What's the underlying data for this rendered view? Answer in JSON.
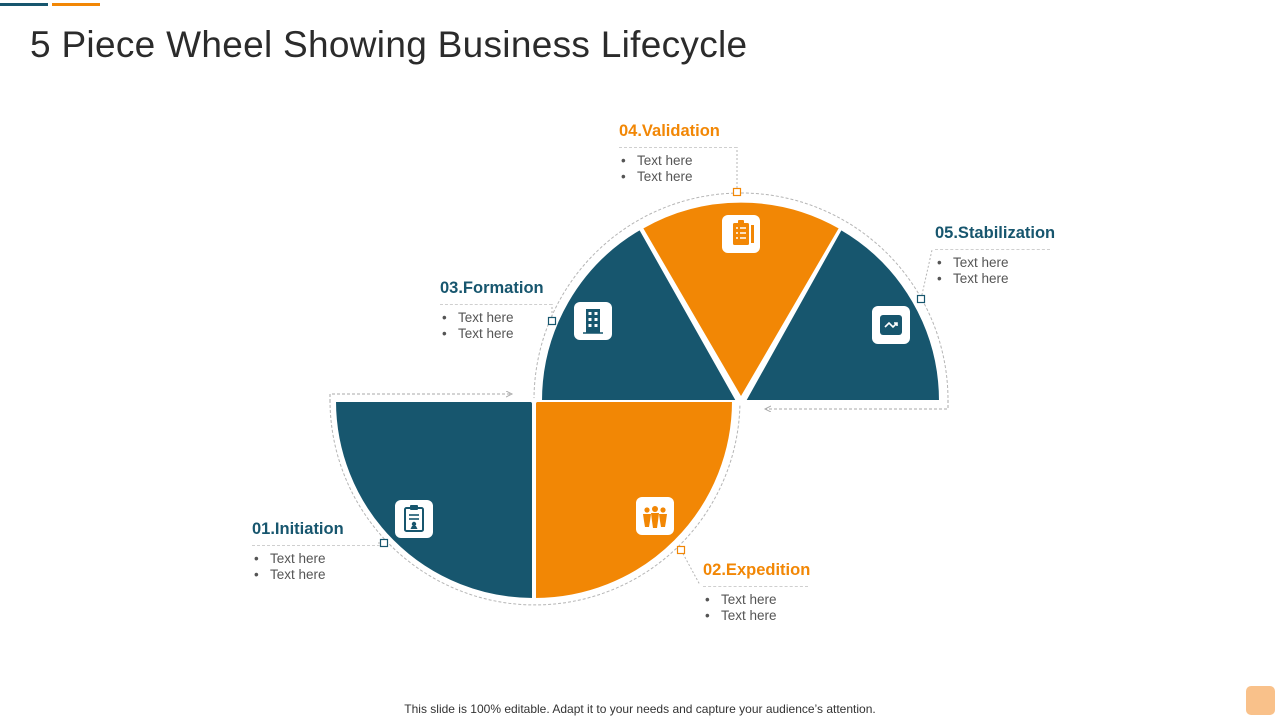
{
  "title": "5 Piece Wheel Showing Business Lifecycle",
  "colors": {
    "teal": "#17566e",
    "orange": "#f28705",
    "title_text": "#2b2b2b",
    "connector": "#aaaaaa"
  },
  "stages": [
    {
      "id": "initiation",
      "heading": "01.Initiation",
      "bullets": [
        "Text here",
        "Text here"
      ],
      "color": "teal",
      "icon": "clipboard-user-icon"
    },
    {
      "id": "expedition",
      "heading": "02.Expedition",
      "bullets": [
        "Text here",
        "Text here"
      ],
      "color": "orange",
      "icon": "team-icon"
    },
    {
      "id": "formation",
      "heading": "03.Formation",
      "bullets": [
        "Text here",
        "Text here"
      ],
      "color": "teal",
      "icon": "building-icon"
    },
    {
      "id": "validation",
      "heading": "04.Validation",
      "bullets": [
        "Text here",
        "Text here"
      ],
      "color": "orange",
      "icon": "checklist-icon"
    },
    {
      "id": "stabilization",
      "heading": "05.Stabilization",
      "bullets": [
        "Text here",
        "Text here"
      ],
      "color": "teal",
      "icon": "trend-icon"
    }
  ],
  "footer": "This slide is 100% editable. Adapt it to your needs and capture your audience’s attention."
}
